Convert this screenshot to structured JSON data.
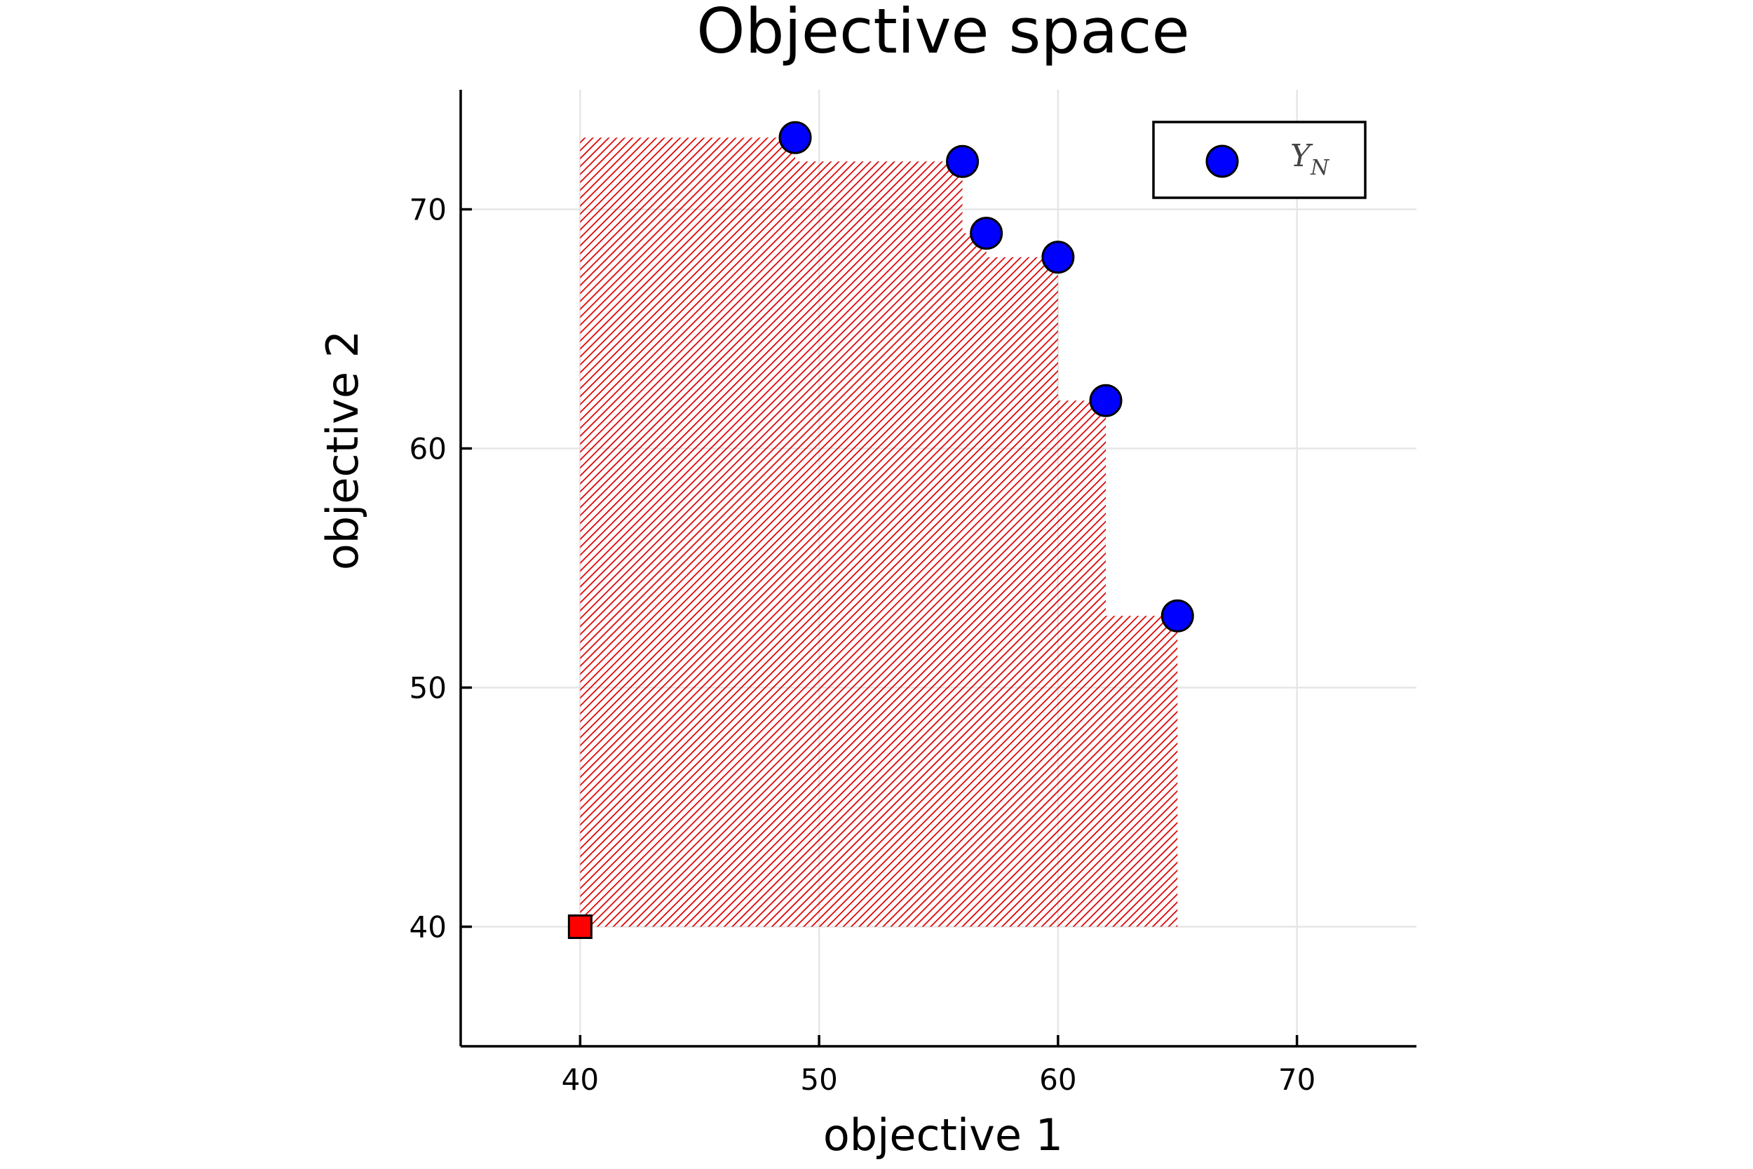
{
  "chart_data": {
    "type": "scatter",
    "title": "Objective space",
    "xlabel": "objective 1",
    "ylabel": "objective 2",
    "xlim": [
      35,
      75
    ],
    "ylim": [
      35,
      75
    ],
    "xticks": [
      40,
      50,
      60,
      70
    ],
    "yticks": [
      40,
      50,
      60,
      70
    ],
    "grid": true,
    "legend_position": "top-right",
    "series": [
      {
        "name": "Y_N",
        "marker": "circle",
        "color": "#0000ff",
        "points": [
          [
            49,
            73
          ],
          [
            56,
            72
          ],
          [
            57,
            69
          ],
          [
            60,
            68
          ],
          [
            62,
            62
          ],
          [
            65,
            53
          ]
        ]
      }
    ],
    "reference_point": {
      "x": 40,
      "y": 40,
      "marker": "square",
      "color": "#ff0000"
    },
    "dominated_region": {
      "color": "#dd0000",
      "fill": "hatched",
      "corner": [
        40,
        40
      ]
    }
  }
}
